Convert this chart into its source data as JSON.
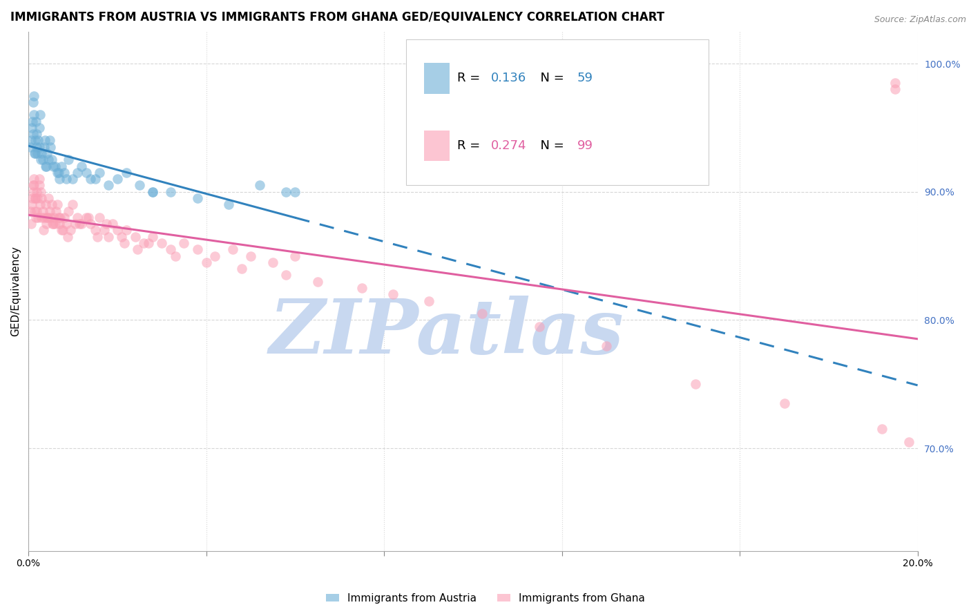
{
  "title": "IMMIGRANTS FROM AUSTRIA VS IMMIGRANTS FROM GHANA GED/EQUIVALENCY CORRELATION CHART",
  "source": "Source: ZipAtlas.com",
  "ylabel": "GED/Equivalency",
  "austria_R": 0.136,
  "austria_N": 59,
  "ghana_R": 0.274,
  "ghana_N": 99,
  "austria_color": "#6baed6",
  "ghana_color": "#fa9fb5",
  "trend_austria_color": "#3182bd",
  "trend_ghana_color": "#e05fa0",
  "watermark": "ZIPatlas",
  "watermark_zip_color": "#c8d8f0",
  "watermark_atlas_color": "#a0b8e0",
  "right_yticks": [
    70,
    80,
    90,
    100
  ],
  "right_ytick_labels": [
    "70.0%",
    "80.0%",
    "90.0%",
    "100.0%"
  ],
  "right_axis_color": "#4472c4",
  "xlim": [
    0.0,
    20.0
  ],
  "ylim": [
    62.0,
    102.5
  ],
  "title_fontsize": 12,
  "axis_label_fontsize": 11,
  "tick_fontsize": 10,
  "background_color": "#ffffff",
  "grid_color": "#cccccc",
  "austria_x_data": [
    0.05,
    0.08,
    0.1,
    0.12,
    0.13,
    0.15,
    0.16,
    0.17,
    0.18,
    0.2,
    0.22,
    0.24,
    0.25,
    0.27,
    0.3,
    0.32,
    0.35,
    0.37,
    0.4,
    0.42,
    0.45,
    0.48,
    0.5,
    0.55,
    0.6,
    0.65,
    0.7,
    0.75,
    0.8,
    0.9,
    1.0,
    1.1,
    1.2,
    1.4,
    1.6,
    1.8,
    2.0,
    2.2,
    2.5,
    2.8,
    3.2,
    3.8,
    4.5,
    5.2,
    6.0,
    0.06,
    0.09,
    0.11,
    0.14,
    0.19,
    0.28,
    0.38,
    0.52,
    0.68,
    0.85,
    1.3,
    1.5,
    2.8,
    5.8
  ],
  "austria_y_data": [
    93.5,
    95.0,
    97.0,
    97.5,
    96.0,
    94.0,
    93.0,
    95.5,
    94.5,
    93.0,
    94.0,
    95.0,
    93.5,
    96.0,
    93.0,
    92.5,
    93.5,
    94.0,
    92.0,
    93.0,
    92.5,
    94.0,
    93.5,
    92.0,
    92.0,
    91.5,
    91.0,
    92.0,
    91.5,
    92.5,
    91.0,
    91.5,
    92.0,
    91.0,
    91.5,
    90.5,
    91.0,
    91.5,
    90.5,
    90.0,
    90.0,
    89.5,
    89.0,
    90.5,
    90.0,
    94.0,
    95.5,
    94.5,
    93.0,
    93.5,
    92.5,
    92.0,
    92.5,
    91.5,
    91.0,
    91.5,
    91.0,
    90.0,
    90.0
  ],
  "ghana_x_data": [
    0.05,
    0.08,
    0.1,
    0.12,
    0.13,
    0.15,
    0.17,
    0.18,
    0.2,
    0.22,
    0.25,
    0.27,
    0.28,
    0.3,
    0.32,
    0.35,
    0.38,
    0.4,
    0.42,
    0.45,
    0.48,
    0.5,
    0.52,
    0.55,
    0.58,
    0.6,
    0.65,
    0.68,
    0.7,
    0.72,
    0.75,
    0.8,
    0.85,
    0.9,
    0.95,
    1.0,
    1.05,
    1.1,
    1.2,
    1.3,
    1.4,
    1.5,
    1.6,
    1.7,
    1.8,
    1.9,
    2.0,
    2.1,
    2.2,
    2.4,
    2.6,
    2.8,
    3.0,
    3.2,
    3.5,
    3.8,
    4.2,
    4.6,
    5.0,
    5.5,
    6.0,
    0.06,
    0.09,
    0.11,
    0.14,
    0.16,
    0.19,
    0.24,
    0.29,
    0.34,
    0.44,
    0.54,
    0.62,
    0.77,
    0.88,
    1.15,
    1.35,
    1.55,
    1.75,
    2.15,
    2.45,
    2.7,
    3.3,
    4.0,
    4.8,
    5.8,
    6.5,
    7.5,
    8.2,
    9.0,
    10.2,
    11.5,
    13.0,
    15.0,
    17.0,
    19.2,
    19.5,
    19.8,
    19.5
  ],
  "ghana_y_data": [
    88.5,
    89.0,
    90.0,
    91.0,
    90.5,
    89.5,
    88.0,
    90.0,
    89.5,
    88.0,
    91.0,
    89.0,
    90.0,
    89.5,
    88.5,
    88.0,
    89.0,
    87.5,
    88.0,
    89.5,
    88.5,
    88.0,
    89.0,
    87.5,
    88.0,
    87.5,
    89.0,
    88.0,
    87.5,
    88.0,
    87.0,
    88.0,
    87.5,
    88.5,
    87.0,
    89.0,
    87.5,
    88.0,
    87.5,
    88.0,
    87.5,
    87.0,
    88.0,
    87.0,
    86.5,
    87.5,
    87.0,
    86.5,
    87.0,
    86.5,
    86.0,
    86.5,
    86.0,
    85.5,
    86.0,
    85.5,
    85.0,
    85.5,
    85.0,
    84.5,
    85.0,
    87.5,
    89.5,
    90.5,
    88.5,
    89.5,
    88.5,
    90.5,
    88.0,
    87.0,
    88.0,
    87.5,
    88.5,
    87.0,
    86.5,
    87.5,
    88.0,
    86.5,
    87.5,
    86.0,
    85.5,
    86.0,
    85.0,
    84.5,
    84.0,
    83.5,
    83.0,
    82.5,
    82.0,
    81.5,
    80.5,
    79.5,
    78.0,
    75.0,
    73.5,
    71.5,
    98.5,
    70.5,
    98.0
  ]
}
